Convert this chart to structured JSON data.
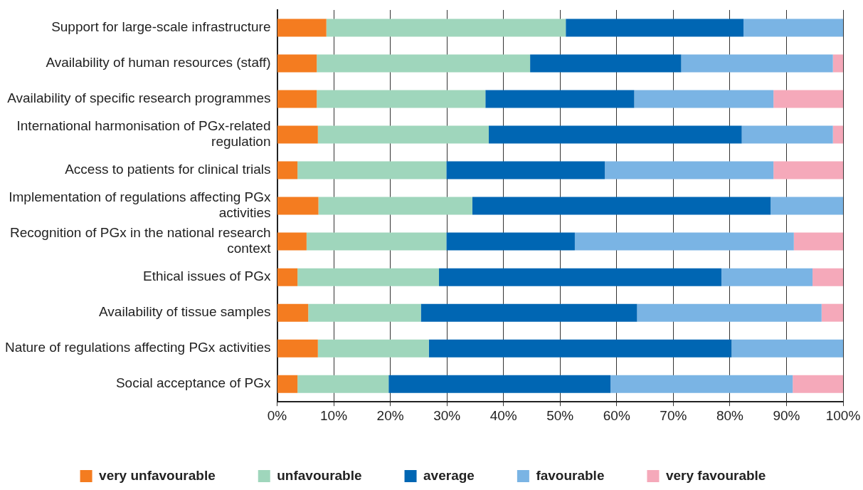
{
  "chart_data": {
    "type": "bar",
    "orientation": "horizontal",
    "stacked": true,
    "categories": [
      "Support for large-scale infrastructure",
      "Availability of human resources (staff)",
      "Availability of specific research programmes",
      "International harmonisation of PGx-related regulation",
      "Access to patients for clinical trials",
      "Implementation of regulations affecting PGx activities",
      "Recognition of PGx in the national research context",
      "Ethical issues of PGx",
      "Availability of tissue samples",
      "Nature of regulations affecting PGx activities",
      "Social acceptance of PGx"
    ],
    "series": [
      {
        "name": "very unfavourable",
        "color": "#f47c20",
        "values": [
          8.7,
          7.0,
          7.0,
          7.2,
          3.6,
          7.3,
          5.2,
          3.6,
          5.5,
          7.2,
          3.6
        ]
      },
      {
        "name": "unfavourable",
        "color": "#9fd6bc",
        "values": [
          42.3,
          37.7,
          29.8,
          30.2,
          26.3,
          27.2,
          24.7,
          25.0,
          19.9,
          19.6,
          16.1
        ]
      },
      {
        "name": "average",
        "color": "#0066b3",
        "values": [
          31.4,
          26.7,
          26.3,
          44.7,
          28.0,
          52.7,
          22.7,
          49.9,
          38.2,
          53.5,
          39.2
        ]
      },
      {
        "name": "favourable",
        "color": "#7ab4e4",
        "values": [
          17.6,
          26.8,
          24.6,
          16.1,
          29.8,
          12.8,
          38.7,
          16.1,
          32.6,
          19.7,
          32.2
        ]
      },
      {
        "name": "very favourable",
        "color": "#f5a9ba",
        "values": [
          0,
          1.8,
          12.3,
          1.8,
          12.3,
          0,
          8.7,
          5.4,
          3.8,
          0,
          8.9
        ]
      }
    ],
    "xlim": [
      0,
      100
    ],
    "xticks": [
      {
        "value": 0,
        "label": "0%"
      },
      {
        "value": 10,
        "label": "10%"
      },
      {
        "value": 20,
        "label": "20%"
      },
      {
        "value": 30,
        "label": "30%"
      },
      {
        "value": 40,
        "label": "40%"
      },
      {
        "value": 50,
        "label": "50%"
      },
      {
        "value": 60,
        "label": "60%"
      },
      {
        "value": 70,
        "label": "70%"
      },
      {
        "value": 80,
        "label": "80%"
      },
      {
        "value": 90,
        "label": "90%"
      },
      {
        "value": 100,
        "label": "100%"
      }
    ],
    "grid": "x",
    "legend": "bottom"
  }
}
